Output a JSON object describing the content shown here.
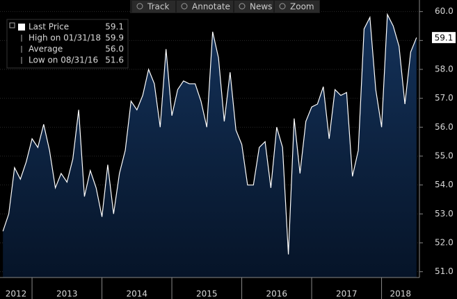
{
  "chart_data": {
    "type": "area",
    "toolbar": [
      "Track",
      "Annotate",
      "News",
      "Zoom"
    ],
    "legend": [
      {
        "label": "Last Price",
        "text": "59.1"
      },
      {
        "label": "High on 01/31/18",
        "text": "59.9"
      },
      {
        "label": "Average",
        "text": "56.0"
      },
      {
        "label": "Low on 08/31/16",
        "text": "51.6"
      }
    ],
    "series": [
      {
        "name": "Last Price",
        "color": "#ffffff",
        "values": [
          52.4,
          53.0,
          54.6,
          54.2,
          54.8,
          55.6,
          55.3,
          56.1,
          55.2,
          53.9,
          54.4,
          54.1,
          54.9,
          56.6,
          53.6,
          54.5,
          53.9,
          52.9,
          54.7,
          53.0,
          54.4,
          55.2,
          56.9,
          56.6,
          57.1,
          58.0,
          57.5,
          56.0,
          58.7,
          56.4,
          57.3,
          57.6,
          57.5,
          57.5,
          56.9,
          56.0,
          59.3,
          58.4,
          56.2,
          57.9,
          55.9,
          55.4,
          54.0,
          54.0,
          55.3,
          55.5,
          53.9,
          56.0,
          55.3,
          51.6,
          56.3,
          54.4,
          56.2,
          56.7,
          56.8,
          57.4,
          55.6,
          57.3,
          57.1,
          57.2,
          54.3,
          55.2,
          59.4,
          59.8,
          57.3,
          56.0,
          59.9,
          59.5,
          58.8,
          56.8,
          58.6,
          59.1
        ]
      }
    ],
    "xlim": [
      -0.5,
      71.5
    ],
    "xticks": [
      {
        "value": -7,
        "label": "2012"
      },
      {
        "value": 5,
        "label": "2013"
      },
      {
        "value": 17,
        "label": "2014"
      },
      {
        "value": 29,
        "label": "2015"
      },
      {
        "value": 41,
        "label": "2016"
      },
      {
        "value": 53,
        "label": "2017"
      },
      {
        "value": 65,
        "label": "2018"
      }
    ],
    "ylim": [
      50.8,
      60.4
    ],
    "yticks": [
      {
        "value": 51,
        "label": "51.0"
      },
      {
        "value": 52,
        "label": "52.0"
      },
      {
        "value": 53,
        "label": "53.0"
      },
      {
        "value": 54,
        "label": "54.0"
      },
      {
        "value": 55,
        "label": "55.0"
      },
      {
        "value": 56,
        "label": "56.0"
      },
      {
        "value": 57,
        "label": "57.0"
      },
      {
        "value": 58,
        "label": "58.0"
      },
      {
        "value": 59,
        "label": "59.0"
      },
      {
        "value": 60,
        "label": "60.0"
      }
    ],
    "grid": true
  }
}
